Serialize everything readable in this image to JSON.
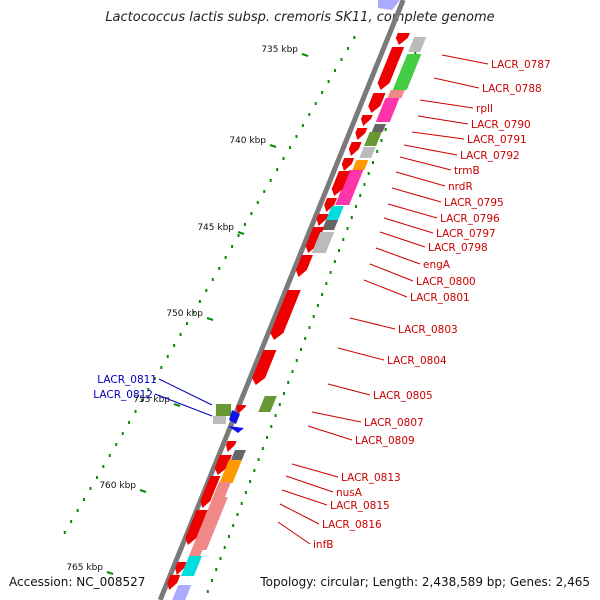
{
  "title": "Lactococcus lactis subsp. cremoris SK11, complete genome",
  "footer": {
    "accession": "Accession: NC_008527",
    "stats": "Topology: circular; Length: 2,438,589 bp; Genes: 2,465"
  },
  "colors": {
    "backbone": "#7a7a7a",
    "tick_green": "#0a8a0a",
    "label_red": "#cc0000",
    "label_blue": "#0000bb",
    "gene_red": "#ee0000",
    "gene_gray": "#bbbbbb",
    "gene_dark": "#666666",
    "gene_green": "#44cc44",
    "gene_olive": "#669933",
    "gene_magenta": "#ff33aa",
    "gene_orange": "#ff9900",
    "gene_cyan": "#00dddd",
    "gene_pink": "#f08888",
    "gene_blue": "#1111ee",
    "gene_lavender": "#aaaaff"
  },
  "scale": [
    {
      "label": "735 kbp"
    },
    {
      "label": "740 kbp"
    },
    {
      "label": "745 kbp"
    },
    {
      "label": "750 kbp"
    },
    {
      "label": "755 kbp"
    },
    {
      "label": "760 kbp"
    },
    {
      "label": "765 kbp"
    }
  ],
  "gene_labels_right": [
    {
      "label": "LACR_0787"
    },
    {
      "label": "LACR_0788"
    },
    {
      "label": "rplI"
    },
    {
      "label": "LACR_0790"
    },
    {
      "label": "LACR_0791"
    },
    {
      "label": "LACR_0792"
    },
    {
      "label": "trmB"
    },
    {
      "label": "nrdR"
    },
    {
      "label": "LACR_0795"
    },
    {
      "label": "LACR_0796"
    },
    {
      "label": "LACR_0797"
    },
    {
      "label": "LACR_0798"
    },
    {
      "label": "engA"
    },
    {
      "label": "LACR_0800"
    },
    {
      "label": "LACR_0801"
    },
    {
      "label": "LACR_0803"
    },
    {
      "label": "LACR_0804"
    },
    {
      "label": "LACR_0805"
    },
    {
      "label": "LACR_0807"
    },
    {
      "label": "LACR_0809"
    },
    {
      "label": "LACR_0813"
    },
    {
      "label": "nusA"
    },
    {
      "label": "LACR_0815"
    },
    {
      "label": "LACR_0816"
    },
    {
      "label": "infB"
    }
  ],
  "gene_labels_left": [
    {
      "label": "LACR_0811"
    },
    {
      "label": "LACR_0812"
    }
  ]
}
